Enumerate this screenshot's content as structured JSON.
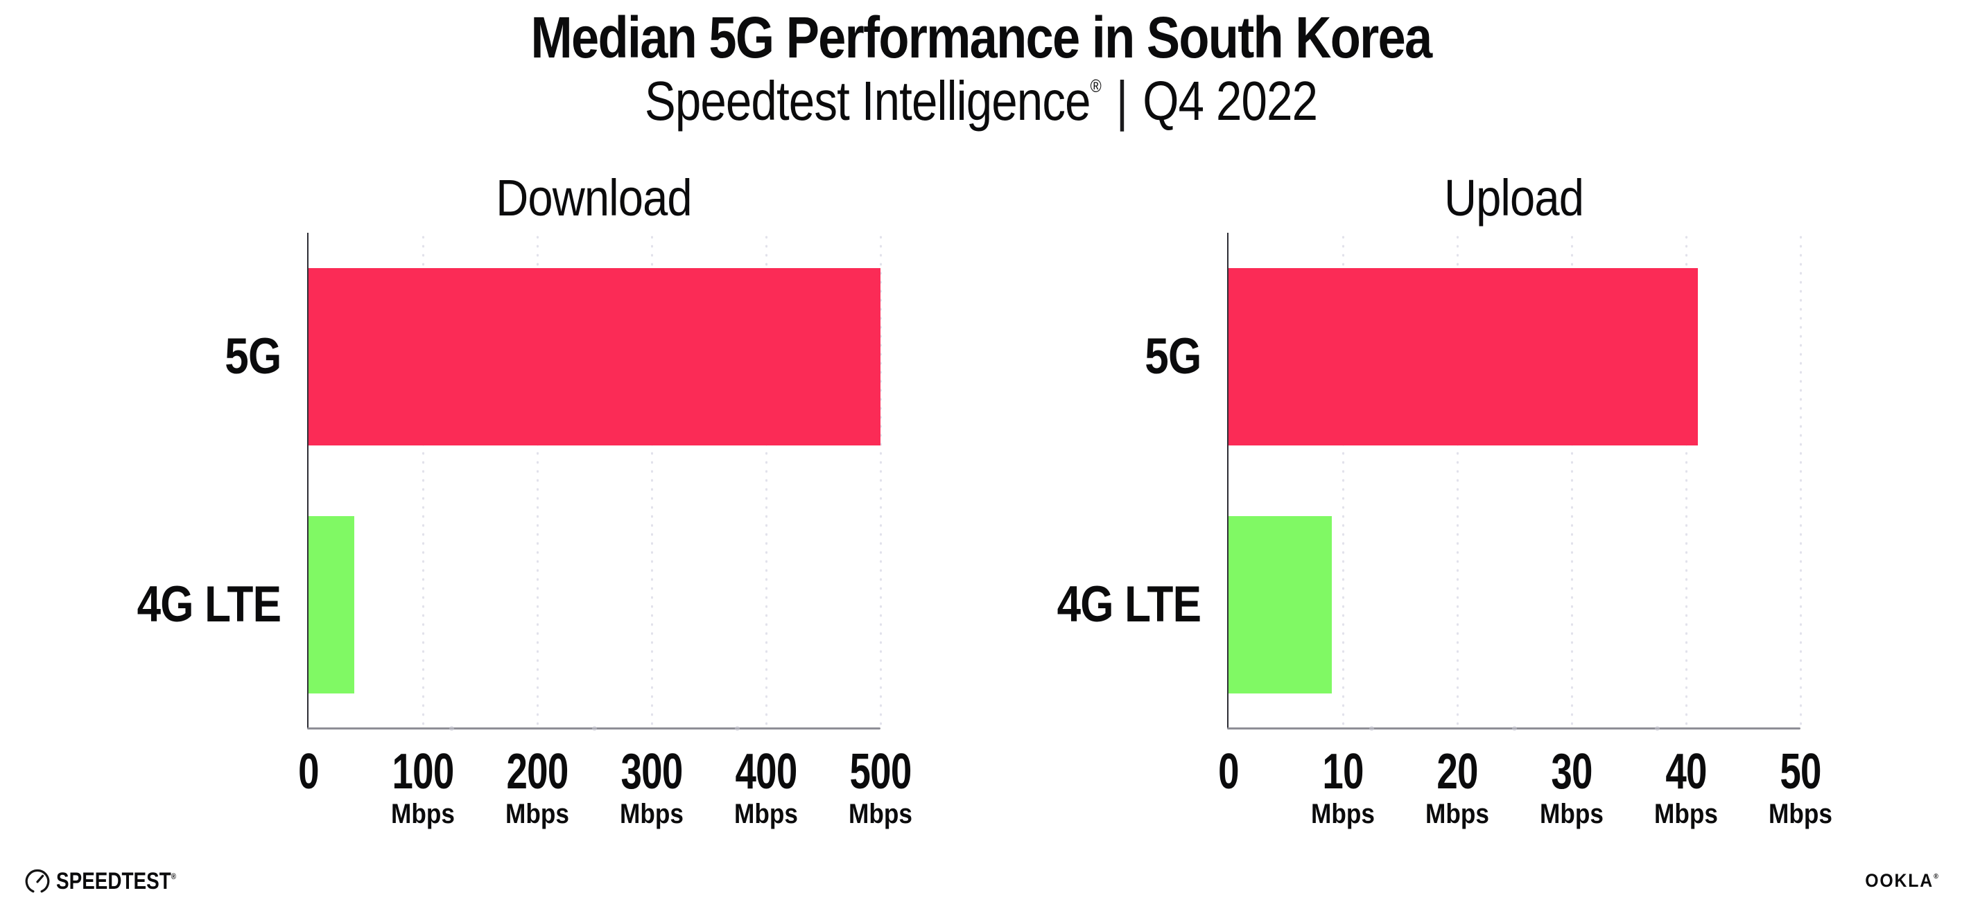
{
  "header": {
    "title": "Median 5G Performance in South Korea",
    "subtitle_brand": "Speedtest Intelligence",
    "subtitle_reg": "®",
    "subtitle_divider": "|",
    "subtitle_period": "Q4 2022"
  },
  "footer": {
    "speedtest_wordmark": "SPEEDTEST",
    "speedtest_mark": "®",
    "gauge_icon": "speedtest-gauge-icon",
    "ookla_wordmark": "OOKLA",
    "ookla_mark": "®"
  },
  "colors": {
    "bar_5g": "#FB2B56",
    "bar_4g_lte": "#80F964",
    "grid_dots": "#E2E2EB",
    "axis_y": "#2D2D34",
    "axis_x": "#8E8E96",
    "text": "#0B0B0C"
  },
  "chart_data": [
    {
      "type": "bar",
      "orientation": "horizontal",
      "title": "Download",
      "categories": [
        "5G",
        "4G LTE"
      ],
      "values": [
        500,
        40
      ],
      "unit": "Mbps",
      "series_colors": [
        "#FB2B56",
        "#80F964"
      ],
      "xlim": [
        0,
        500
      ],
      "xticks": [
        0,
        100,
        200,
        300,
        400,
        500
      ],
      "tick_unit": "Mbps",
      "grid": "vertical-dotted",
      "legend": false
    },
    {
      "type": "bar",
      "orientation": "horizontal",
      "title": "Upload",
      "categories": [
        "5G",
        "4G LTE"
      ],
      "values": [
        41,
        9
      ],
      "unit": "Mbps",
      "series_colors": [
        "#FB2B56",
        "#80F964"
      ],
      "xlim": [
        0,
        50
      ],
      "xticks": [
        0,
        10,
        20,
        30,
        40,
        50
      ],
      "tick_unit": "Mbps",
      "grid": "vertical-dotted",
      "legend": false
    }
  ]
}
